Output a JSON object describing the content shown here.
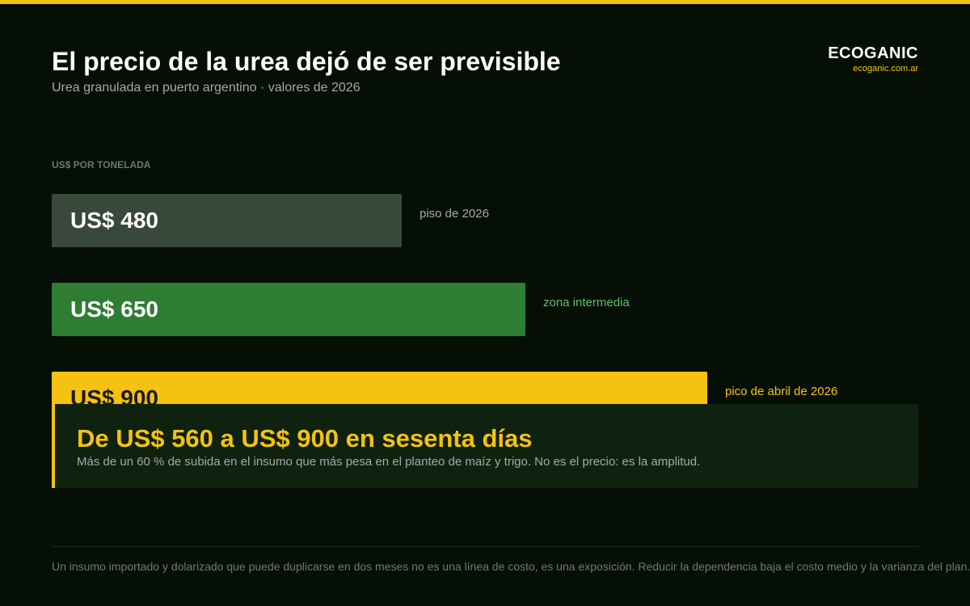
{
  "header": {
    "title": "El precio de la urea dejó de ser previsible",
    "subtitle": "Urea granulada en puerto argentino · valores de 2026"
  },
  "brand": {
    "name": "ECOGANIC",
    "url": "ecoganic.com.ar"
  },
  "colors": {
    "background": "#060f06",
    "accent": "#f5c211",
    "bar_low": "#38483a",
    "bar_mid": "#2e7d32",
    "bar_high": "#f5c211"
  },
  "chart_data": {
    "type": "bar",
    "orientation": "horizontal",
    "title": "El precio de la urea dejó de ser previsible",
    "subtitle": "Urea granulada en puerto argentino · valores de 2026",
    "ylabel": "US$ POR TONELADA",
    "xlim": [
      0,
      1000
    ],
    "grid": false,
    "legend": "none",
    "bars": [
      {
        "value": 480,
        "value_label": "US$ 480",
        "note": "piso de 2026",
        "color": "#38483a",
        "label_color": "#ffffff",
        "note_color": "#a4aaa4"
      },
      {
        "value": 650,
        "value_label": "US$ 650",
        "note": "zona intermedia",
        "color": "#2e7d32",
        "label_color": "#ffffff",
        "note_color": "#66bb6a"
      },
      {
        "value": 900,
        "value_label": "US$ 900",
        "note": "pico de abril de 2026",
        "color": "#f5c211",
        "label_color": "#1a1a1a",
        "note_color": "#f5c211"
      }
    ]
  },
  "callout": {
    "title": "De US$ 560 a US$ 900 en sesenta días",
    "text": "Más de un 60 % de subida en el insumo que más pesa en el planteo de maíz y trigo. No es el precio: es la amplitud."
  },
  "footer": {
    "text": "Un insumo importado y dolarizado que puede duplicarse en dos meses no es una línea de costo, es una exposición. Reducir la dependencia baja el costo medio y la varianza del plan."
  }
}
